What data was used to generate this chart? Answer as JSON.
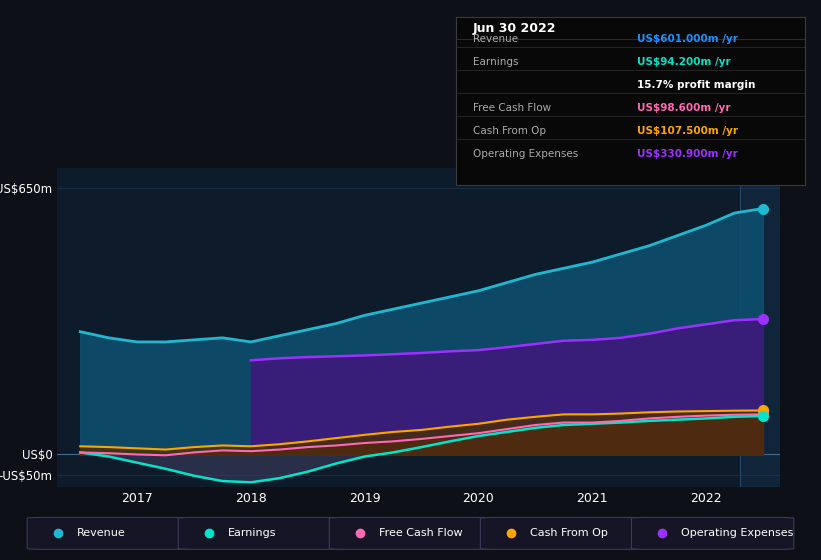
{
  "bg_color": "#0d1117",
  "plot_bg": "#0d1b2a",
  "grid_color": "#1e3a5f",
  "title_date": "Jun 30 2022",
  "info_box_rows": [
    {
      "label": "Revenue",
      "value": "US$601.000m /yr",
      "color": "#1e90ff"
    },
    {
      "label": "Earnings",
      "value": "US$94.200m /yr",
      "color": "#00e5cc"
    },
    {
      "label": "",
      "value": "15.7% profit margin",
      "color": "#ffffff"
    },
    {
      "label": "Free Cash Flow",
      "value": "US$98.600m /yr",
      "color": "#ff69b4"
    },
    {
      "label": "Cash From Op",
      "value": "US$107.500m /yr",
      "color": "#ffa500"
    },
    {
      "label": "Operating Expenses",
      "value": "US$330.900m /yr",
      "color": "#9b30ff"
    }
  ],
  "years": [
    2016.5,
    2016.75,
    2017.0,
    2017.25,
    2017.5,
    2017.75,
    2018.0,
    2018.25,
    2018.5,
    2018.75,
    2019.0,
    2019.25,
    2019.5,
    2019.75,
    2020.0,
    2020.25,
    2020.5,
    2020.75,
    2021.0,
    2021.25,
    2021.5,
    2021.75,
    2022.0,
    2022.25,
    2022.5
  ],
  "revenue": [
    300,
    285,
    275,
    275,
    280,
    285,
    275,
    290,
    305,
    320,
    340,
    355,
    370,
    385,
    400,
    420,
    440,
    455,
    470,
    490,
    510,
    535,
    560,
    590,
    601
  ],
  "operating_expenses": [
    0,
    0,
    0,
    0,
    0,
    0,
    230,
    235,
    238,
    240,
    242,
    245,
    248,
    252,
    255,
    262,
    270,
    278,
    280,
    285,
    295,
    308,
    318,
    328,
    331
  ],
  "free_cash_flow": [
    5,
    3,
    0,
    -2,
    5,
    10,
    8,
    12,
    18,
    22,
    28,
    32,
    38,
    45,
    52,
    62,
    72,
    78,
    78,
    82,
    88,
    92,
    95,
    97,
    98
  ],
  "cash_from_op": [
    20,
    18,
    15,
    12,
    18,
    22,
    20,
    25,
    32,
    40,
    48,
    55,
    60,
    68,
    75,
    85,
    92,
    98,
    98,
    100,
    103,
    105,
    106,
    107,
    107.5
  ],
  "earnings": [
    5,
    -5,
    -20,
    -35,
    -52,
    -65,
    -68,
    -58,
    -42,
    -22,
    -5,
    5,
    18,
    32,
    45,
    55,
    65,
    72,
    75,
    78,
    82,
    85,
    88,
    92,
    94.2
  ],
  "ylim": [
    -80,
    700
  ],
  "y_ticks": [
    -50,
    0,
    650
  ],
  "y_tick_labels": [
    "-US$50m",
    "US$0",
    "US$650m"
  ],
  "colors": {
    "revenue": "#1eb8d0",
    "revenue_fill": "#0d4f6e",
    "operating_expenses": "#9b30ff",
    "operating_expenses_fill": "#3d1a7a",
    "free_cash_flow": "#ff69b4",
    "free_cash_flow_fill": "#6a1835",
    "cash_from_op": "#ffa500",
    "cash_from_op_fill": "#4a3000",
    "earnings": "#00e5cc",
    "earnings_fill": "#3a3a5a"
  },
  "legend": [
    {
      "label": "Revenue",
      "color": "#1eb8d0"
    },
    {
      "label": "Earnings",
      "color": "#00e5cc"
    },
    {
      "label": "Free Cash Flow",
      "color": "#ff69b4"
    },
    {
      "label": "Cash From Op",
      "color": "#ffa500"
    },
    {
      "label": "Operating Expenses",
      "color": "#9b30ff"
    }
  ]
}
